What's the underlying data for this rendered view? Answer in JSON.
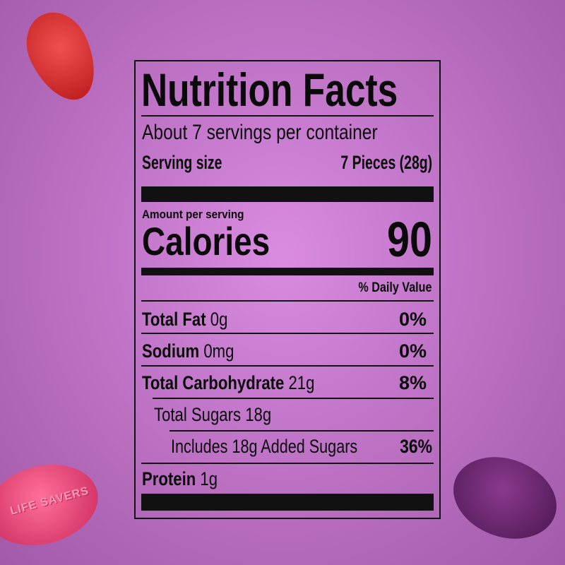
{
  "label": {
    "title": "Nutrition Facts",
    "servings_per_container": "About 7 servings per container",
    "serving_size_label": "Serving size",
    "serving_size_value": "7 Pieces (28g)",
    "amount_per_serving": "Amount per serving",
    "calories_label": "Calories",
    "calories_value": "90",
    "daily_value_header": "% Daily Value",
    "rows": [
      {
        "name": "Total Fat",
        "amount": "0g",
        "dv": "0%"
      },
      {
        "name": "Sodium",
        "amount": "0mg",
        "dv": "0%"
      },
      {
        "name": "Total Carbohydrate",
        "amount": "21g",
        "dv": "8%"
      },
      {
        "name": "Total Sugars 18g",
        "amount": "",
        "dv": ""
      },
      {
        "name": "Includes 18g Added Sugars",
        "amount": "",
        "dv": "36%"
      },
      {
        "name": "Protein",
        "amount": "1g",
        "dv": ""
      }
    ]
  },
  "colors": {
    "background": "#c276c9",
    "text": "#0a0a0a",
    "candy_red": "#d32a2a",
    "candy_pink": "#e84d7a",
    "candy_purple": "#6b2a6e"
  },
  "decor": {
    "candy_text": "LIFE SAVERS"
  }
}
